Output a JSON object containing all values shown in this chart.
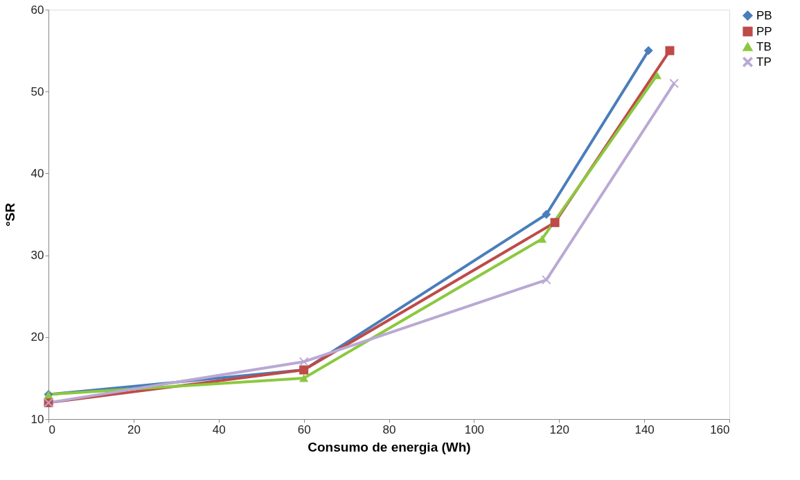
{
  "chart_data": {
    "type": "line",
    "xlabel": "Consumo de energia (Wh)",
    "ylabel": "°SR",
    "xlim": [
      0,
      160
    ],
    "xticks": [
      0,
      20,
      40,
      60,
      80,
      100,
      120,
      140,
      160
    ],
    "ylim": [
      10,
      60
    ],
    "yticks": [
      10,
      20,
      30,
      40,
      50,
      60
    ],
    "grid": false,
    "legend": "right",
    "line_style": "solid",
    "series": [
      {
        "name": "PB",
        "color": "#4a7ebb",
        "marker": "diamond",
        "x": [
          0,
          60,
          117,
          141
        ],
        "values": [
          13,
          16,
          35,
          55
        ]
      },
      {
        "name": "PP",
        "color": "#be4b48",
        "marker": "square",
        "x": [
          0,
          60,
          119,
          146
        ],
        "values": [
          12,
          16,
          34,
          55
        ]
      },
      {
        "name": "TB",
        "color": "#8cc83f",
        "marker": "triangle",
        "x": [
          0,
          60,
          116,
          143
        ],
        "values": [
          13,
          15,
          32,
          52
        ]
      },
      {
        "name": "TP",
        "color": "#b9a9d3",
        "marker": "cross",
        "x": [
          0,
          60,
          117,
          147
        ],
        "values": [
          12,
          17,
          27,
          51
        ]
      }
    ]
  }
}
